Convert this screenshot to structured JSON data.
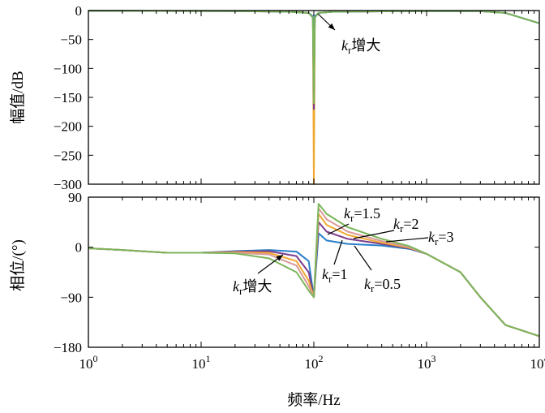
{
  "chart_data": [
    {
      "type": "line",
      "panel": "magnitude",
      "ylabel": "幅值/dB",
      "xscale": "log",
      "xlim": [
        1,
        10000
      ],
      "ylim": [
        -300,
        0
      ],
      "yticks": [
        "0",
        "−50",
        "−100",
        "−150",
        "−200",
        "−250",
        "−300"
      ],
      "grid": false,
      "annotations": [
        {
          "k": "k",
          "sub": "r",
          "text": "增大"
        }
      ],
      "series": [
        {
          "color": "#f0a830",
          "x": [
            1,
            20,
            60,
            90,
            98,
            100,
            102,
            110,
            150,
            300,
            1000,
            3000,
            5000,
            10000
          ],
          "y": [
            -0.5,
            -1,
            -2,
            -4,
            -12,
            -300,
            -12,
            -4,
            -2,
            -1.5,
            -1,
            -1,
            -4,
            -22
          ]
        },
        {
          "color": "#7a3d8c",
          "x": [
            1,
            20,
            60,
            90,
            98,
            100,
            102,
            110,
            150,
            300,
            1000,
            3000,
            5000,
            10000
          ],
          "y": [
            -0.5,
            -1,
            -2,
            -4,
            -12,
            -170,
            -12,
            -4,
            -2,
            -1.5,
            -1,
            -1,
            -4,
            -22
          ]
        },
        {
          "color": "#2a7fc8",
          "x": [
            1,
            20,
            60,
            90,
            98,
            100,
            102,
            110,
            150,
            300,
            1000,
            3000,
            5000,
            10000
          ],
          "y": [
            -0.5,
            -1,
            -2,
            -4,
            -10,
            -55,
            -10,
            -4,
            -2,
            -1.5,
            -1,
            -1,
            -4,
            -22
          ]
        },
        {
          "color": "#7cb55a",
          "x": [
            1,
            20,
            60,
            90,
            98,
            100,
            102,
            110,
            150,
            300,
            1000,
            3000,
            5000,
            10000
          ],
          "y": [
            -0.5,
            -1,
            -2,
            -4,
            -12,
            -160,
            -12,
            -4,
            -2,
            -1.5,
            -1,
            -1,
            -4,
            -22
          ]
        }
      ]
    },
    {
      "type": "line",
      "panel": "phase",
      "xlabel": "频率/Hz",
      "ylabel": "相位/(°)",
      "xscale": "log",
      "xlim": [
        1,
        10000
      ],
      "ylim": [
        -180,
        90
      ],
      "yticks": [
        "90",
        "0",
        "−90",
        "−180"
      ],
      "xticks": [
        {
          "base": "10",
          "exp": "0"
        },
        {
          "base": "10",
          "exp": "1"
        },
        {
          "base": "10",
          "exp": "2"
        },
        {
          "base": "10",
          "exp": "3"
        },
        {
          "base": "10",
          "exp": "4"
        }
      ],
      "grid": false,
      "annotations": [
        {
          "k": "k",
          "sub": "r",
          "text": "=1.5"
        },
        {
          "k": "k",
          "sub": "r",
          "text": "=2"
        },
        {
          "k": "k",
          "sub": "r",
          "text": "=3"
        },
        {
          "k": "k",
          "sub": "r",
          "text": "=1"
        },
        {
          "k": "k",
          "sub": "r",
          "text": "=0.5"
        },
        {
          "k": "k",
          "sub": "r",
          "text": "增大"
        }
      ],
      "series": [
        {
          "name": "kr=0.5",
          "color": "#2a7fc8",
          "x": [
            1,
            2,
            5,
            10,
            20,
            40,
            70,
            90,
            100,
            110,
            130,
            200,
            400,
            700,
            1000,
            2000,
            3000,
            5000,
            10000
          ],
          "y": [
            -2,
            -5,
            -10,
            -10,
            -7,
            -5,
            -8,
            -25,
            -90,
            25,
            12,
            6,
            3,
            -3,
            -12,
            -45,
            -90,
            -140,
            -160
          ]
        },
        {
          "name": "kr=1",
          "color": "#7a3d8c",
          "x": [
            1,
            2,
            5,
            10,
            20,
            40,
            70,
            90,
            100,
            110,
            130,
            200,
            400,
            700,
            1000,
            2000,
            3000,
            5000,
            10000
          ],
          "y": [
            -2,
            -5,
            -10,
            -10,
            -8,
            -7,
            -16,
            -45,
            -90,
            45,
            28,
            15,
            6,
            -2,
            -12,
            -45,
            -90,
            -140,
            -160
          ]
        },
        {
          "name": "kr=1.5",
          "color": "#f0a830",
          "x": [
            1,
            2,
            5,
            10,
            20,
            40,
            70,
            90,
            100,
            110,
            130,
            200,
            400,
            700,
            1000,
            2000,
            3000,
            5000,
            10000
          ],
          "y": [
            -2,
            -5,
            -10,
            -10,
            -9,
            -10,
            -25,
            -60,
            -90,
            60,
            40,
            22,
            8,
            -1,
            -12,
            -45,
            -90,
            -140,
            -160
          ]
        },
        {
          "name": "kr=2",
          "color": "#d99a9a",
          "x": [
            1,
            2,
            5,
            10,
            20,
            40,
            70,
            90,
            100,
            110,
            130,
            200,
            400,
            700,
            1000,
            2000,
            3000,
            5000,
            10000
          ],
          "y": [
            -2,
            -5,
            -10,
            -10,
            -10,
            -13,
            -33,
            -70,
            -90,
            70,
            50,
            28,
            11,
            0,
            -12,
            -45,
            -90,
            -140,
            -160
          ]
        },
        {
          "name": "kr=3",
          "color": "#7cb55a",
          "x": [
            1,
            2,
            5,
            10,
            20,
            40,
            70,
            90,
            100,
            110,
            130,
            200,
            400,
            700,
            1000,
            2000,
            3000,
            5000,
            10000
          ],
          "y": [
            -2,
            -5,
            -10,
            -10,
            -11,
            -20,
            -45,
            -78,
            -90,
            78,
            60,
            36,
            15,
            2,
            -12,
            -45,
            -90,
            -140,
            -160
          ]
        }
      ]
    }
  ]
}
